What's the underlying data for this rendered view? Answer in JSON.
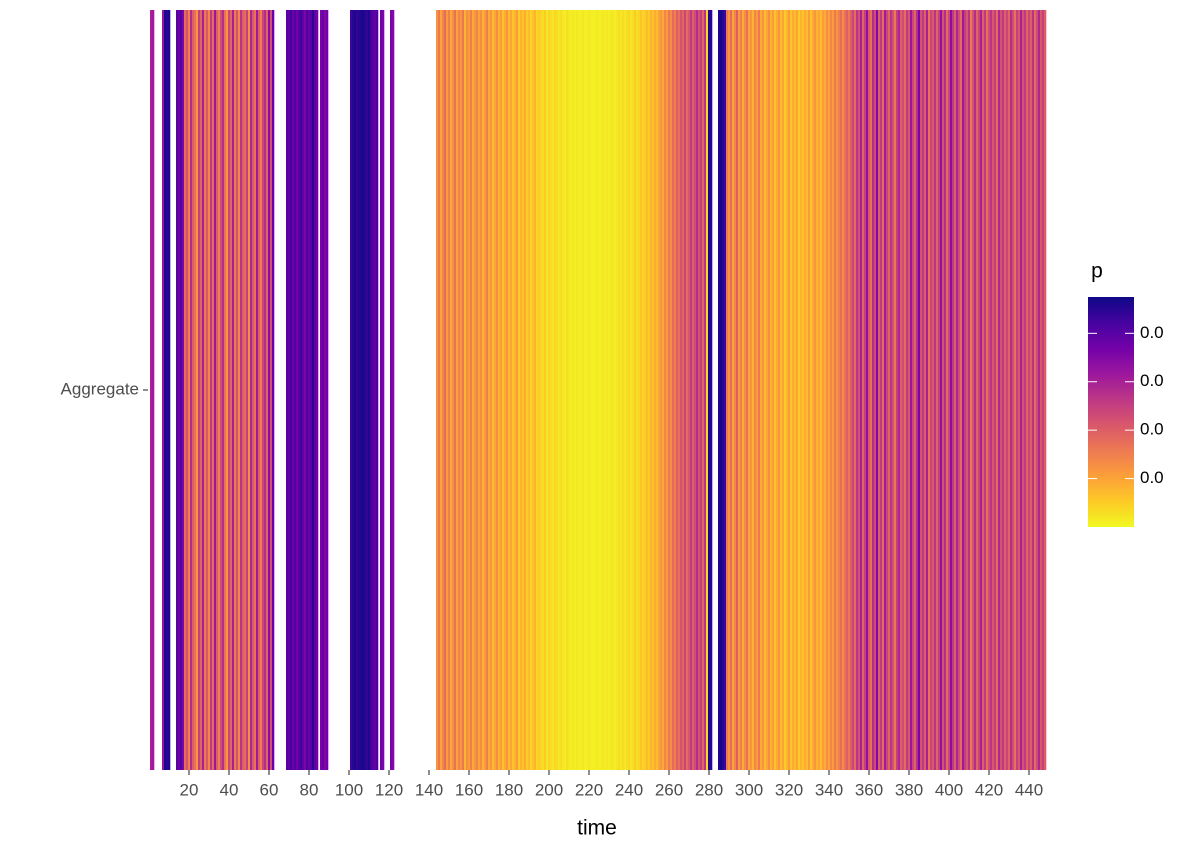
{
  "chart_data": {
    "type": "heatmap",
    "x_label": "time",
    "ycategories": [
      "Aggregate"
    ],
    "legend_title": "p",
    "colors": [
      "#f0f921",
      "#fdca26",
      "#fb9f3a",
      "#ed7953",
      "#d8576b",
      "#bd3786",
      "#9c179e",
      "#7201a8",
      "#46039f",
      "#0d0887"
    ],
    "clim": [
      0,
      0.0475
    ],
    "cticks": [
      {
        "value": 0.01,
        "label": "0.0"
      },
      {
        "value": 0.02,
        "label": "0.0"
      },
      {
        "value": 0.03,
        "label": "0.0"
      },
      {
        "value": 0.04,
        "label": "0.0"
      }
    ],
    "xlim": [
      -0.5,
      448.5
    ],
    "xticks": [
      20,
      40,
      60,
      80,
      100,
      120,
      140,
      160,
      180,
      200,
      220,
      240,
      260,
      280,
      300,
      320,
      340,
      360,
      380,
      400,
      420,
      440
    ],
    "x": [
      1,
      2,
      3,
      4,
      5,
      6,
      7,
      8,
      9,
      10,
      11,
      12,
      13,
      14,
      15,
      16,
      17,
      18,
      19,
      20,
      21,
      22,
      23,
      24,
      25,
      26,
      27,
      28,
      29,
      30,
      31,
      32,
      33,
      34,
      35,
      36,
      37,
      38,
      39,
      40,
      41,
      42,
      43,
      44,
      45,
      46,
      47,
      48,
      49,
      50,
      51,
      52,
      53,
      54,
      55,
      56,
      57,
      58,
      59,
      60,
      61,
      62,
      63,
      64,
      65,
      66,
      67,
      68,
      69,
      70,
      71,
      72,
      73,
      74,
      75,
      76,
      77,
      78,
      79,
      80,
      81,
      82,
      83,
      84,
      85,
      86,
      87,
      88,
      89,
      90,
      91,
      92,
      93,
      94,
      95,
      96,
      97,
      98,
      99,
      100,
      101,
      102,
      103,
      104,
      105,
      106,
      107,
      108,
      109,
      110,
      111,
      112,
      113,
      114,
      115,
      116,
      117,
      118,
      119,
      120,
      121,
      122,
      123,
      124,
      125,
      126,
      127,
      128,
      129,
      130,
      131,
      132,
      133,
      134,
      135,
      136,
      137,
      138,
      139,
      140,
      141,
      142,
      143,
      144,
      145,
      146,
      147,
      148,
      149,
      150,
      151,
      152,
      153,
      154,
      155,
      156,
      157,
      158,
      159,
      160,
      161,
      162,
      163,
      164,
      165,
      166,
      167,
      168,
      169,
      170,
      171,
      172,
      173,
      174,
      175,
      176,
      177,
      178,
      179,
      180,
      181,
      182,
      183,
      184,
      185,
      186,
      187,
      188,
      189,
      190,
      191,
      192,
      193,
      194,
      195,
      196,
      197,
      198,
      199,
      200,
      201,
      202,
      203,
      204,
      205,
      206,
      207,
      208,
      209,
      210,
      211,
      212,
      213,
      214,
      215,
      216,
      217,
      218,
      219,
      220,
      221,
      222,
      223,
      224,
      225,
      226,
      227,
      228,
      229,
      230,
      231,
      232,
      233,
      234,
      235,
      236,
      237,
      238,
      239,
      240,
      241,
      242,
      243,
      244,
      245,
      246,
      247,
      248,
      249,
      250,
      251,
      252,
      253,
      254,
      255,
      256,
      257,
      258,
      259,
      260,
      261,
      262,
      263,
      264,
      265,
      266,
      267,
      268,
      269,
      270,
      271,
      272,
      273,
      274,
      275,
      276,
      277,
      278,
      279,
      280,
      281,
      282,
      283,
      284,
      285,
      286,
      287,
      288,
      289,
      290,
      291,
      292,
      293,
      294,
      295,
      296,
      297,
      298,
      299,
      300,
      301,
      302,
      303,
      304,
      305,
      306,
      307,
      308,
      309,
      310,
      311,
      312,
      313,
      314,
      315,
      316,
      317,
      318,
      319,
      320,
      321,
      322,
      323,
      324,
      325,
      326,
      327,
      328,
      329,
      330,
      331,
      332,
      333,
      334,
      335,
      336,
      337,
      338,
      339,
      340,
      341,
      342,
      343,
      344,
      345,
      346,
      347,
      348,
      349,
      350,
      351,
      352,
      353,
      354,
      355,
      356,
      357,
      358,
      359,
      360,
      361,
      362,
      363,
      364,
      365,
      366,
      367,
      368,
      369,
      370,
      371,
      372,
      373,
      374,
      375,
      376,
      377,
      378,
      379,
      380,
      381,
      382,
      383,
      384,
      385,
      386,
      387,
      388,
      389,
      390,
      391,
      392,
      393,
      394,
      395,
      396,
      397,
      398,
      399,
      400,
      401,
      402,
      403,
      404,
      405,
      406,
      407,
      408,
      409,
      410,
      411,
      412,
      413,
      414,
      415,
      416,
      417,
      418,
      419,
      420,
      421,
      422,
      423,
      424,
      425,
      426,
      427,
      428,
      429,
      430,
      431,
      432,
      433,
      434,
      435,
      436,
      437,
      438,
      439,
      440,
      441,
      442,
      443,
      444,
      445,
      446,
      447,
      448
    ],
    "values": [
      0.03,
      0.031,
      null,
      null,
      null,
      null,
      0.032,
      0.046,
      0.045,
      0.046,
      null,
      null,
      null,
      0.04,
      0.038,
      0.041,
      0.036,
      0.018,
      0.022,
      0.015,
      0.028,
      0.02,
      0.017,
      0.012,
      0.025,
      0.019,
      0.03,
      0.016,
      0.021,
      0.014,
      0.026,
      0.018,
      0.032,
      0.02,
      0.015,
      0.023,
      0.028,
      0.017,
      0.012,
      0.024,
      0.019,
      0.03,
      0.016,
      0.022,
      0.014,
      0.027,
      0.02,
      0.018,
      0.025,
      0.013,
      0.029,
      0.021,
      0.017,
      0.031,
      0.02,
      0.015,
      0.024,
      0.028,
      0.019,
      0.034,
      0.022,
      0.038,
      null,
      null,
      null,
      null,
      null,
      null,
      0.04,
      0.039,
      0.042,
      0.038,
      0.041,
      0.037,
      0.04,
      0.043,
      0.039,
      0.036,
      0.041,
      0.038,
      0.04,
      0.045,
      0.039,
      0.037,
      null,
      0.036,
      0.038,
      0.035,
      0.037,
      null,
      null,
      null,
      null,
      null,
      null,
      null,
      null,
      null,
      null,
      null,
      0.043,
      0.045,
      0.046,
      0.044,
      0.045,
      0.046,
      0.047,
      0.045,
      0.044,
      0.046,
      0.042,
      0.04,
      0.039,
      0.041,
      null,
      0.037,
      0.036,
      null,
      null,
      null,
      0.036,
      0.035,
      null,
      null,
      null,
      null,
      null,
      null,
      null,
      null,
      null,
      null,
      null,
      null,
      null,
      null,
      null,
      null,
      null,
      null,
      null,
      null,
      null,
      0.012,
      0.016,
      0.01,
      0.014,
      0.018,
      0.011,
      0.015,
      0.009,
      0.013,
      0.017,
      0.01,
      0.014,
      0.012,
      0.016,
      0.008,
      0.013,
      0.011,
      0.015,
      0.009,
      0.012,
      0.014,
      0.01,
      0.013,
      0.008,
      0.011,
      0.015,
      0.009,
      0.012,
      0.007,
      0.01,
      0.013,
      0.008,
      0.011,
      0.006,
      0.009,
      0.012,
      0.007,
      0.01,
      0.006,
      0.008,
      0.011,
      0.005,
      0.008,
      0.006,
      0.009,
      0.005,
      0.007,
      0.004,
      0.006,
      0.008,
      0.004,
      0.005,
      0.004,
      0.003,
      0.005,
      0.002,
      0.004,
      0.003,
      0.002,
      0.004,
      0.003,
      0.002,
      0.003,
      0.002,
      0.001,
      0.003,
      0.002,
      0.001,
      0.002,
      0.001,
      0.002,
      0.001,
      0.001,
      0.002,
      0.001,
      0.001,
      0.002,
      0.001,
      0.001,
      0.001,
      0.002,
      0.001,
      0.001,
      0.002,
      0.001,
      0.002,
      0.001,
      0.002,
      0.002,
      0.001,
      0.002,
      0.003,
      0.002,
      0.003,
      0.002,
      0.003,
      0.004,
      0.002,
      0.003,
      0.005,
      0.003,
      0.004,
      0.006,
      0.004,
      0.005,
      0.007,
      0.005,
      0.008,
      0.006,
      0.009,
      0.007,
      0.01,
      0.012,
      0.009,
      0.014,
      0.011,
      0.016,
      0.013,
      0.018,
      0.015,
      0.02,
      0.017,
      0.022,
      0.019,
      0.024,
      0.018,
      0.021,
      0.026,
      0.02,
      0.023,
      0.028,
      0.022,
      0.025,
      0.019,
      0.027,
      0.004,
      0.046,
      0.045,
      null,
      null,
      null,
      0.046,
      0.047,
      0.045,
      0.043,
      0.016,
      0.012,
      0.018,
      0.01,
      0.014,
      0.02,
      0.011,
      0.015,
      0.009,
      0.013,
      0.017,
      0.01,
      0.012,
      0.008,
      0.014,
      0.011,
      0.016,
      0.009,
      0.012,
      0.007,
      0.01,
      0.013,
      0.008,
      0.011,
      0.006,
      0.009,
      0.012,
      0.007,
      0.01,
      0.005,
      0.008,
      0.011,
      0.006,
      0.009,
      0.007,
      0.01,
      0.005,
      0.008,
      0.006,
      0.009,
      0.007,
      0.011,
      0.006,
      0.009,
      0.012,
      0.008,
      0.01,
      0.007,
      0.011,
      0.009,
      0.013,
      0.01,
      0.014,
      0.011,
      0.016,
      0.012,
      0.015,
      0.018,
      0.013,
      0.017,
      0.02,
      0.016,
      0.02,
      0.024,
      0.018,
      0.027,
      0.022,
      0.03,
      0.019,
      0.025,
      0.033,
      0.021,
      0.017,
      0.028,
      0.023,
      0.035,
      0.02,
      0.026,
      0.018,
      0.031,
      0.024,
      0.019,
      0.027,
      0.022,
      0.016,
      0.025,
      0.029,
      0.02,
      0.023,
      0.018,
      0.026,
      0.021,
      0.032,
      0.024,
      0.019,
      0.028,
      0.036,
      0.022,
      0.026,
      0.02,
      0.03,
      0.017,
      0.024,
      0.021,
      0.027,
      0.019,
      0.025,
      0.033,
      0.022,
      0.028,
      0.018,
      0.024,
      0.034,
      0.026,
      0.02,
      0.029,
      0.023,
      0.018,
      0.031,
      0.025,
      0.021,
      0.027,
      0.016,
      0.022,
      0.028,
      0.019,
      0.024,
      0.03,
      0.02,
      0.026,
      0.017,
      0.023,
      0.027,
      0.021,
      0.025,
      0.018,
      0.029,
      0.022,
      0.026,
      0.02,
      0.024,
      0.019,
      0.028,
      0.023,
      0.017,
      0.025,
      0.021,
      0.03,
      0.022,
      0.026,
      0.019,
      0.024,
      0.02,
      0.027,
      0.018,
      0.023,
      0.029,
      0.021,
      0.025,
      0.02
    ]
  }
}
